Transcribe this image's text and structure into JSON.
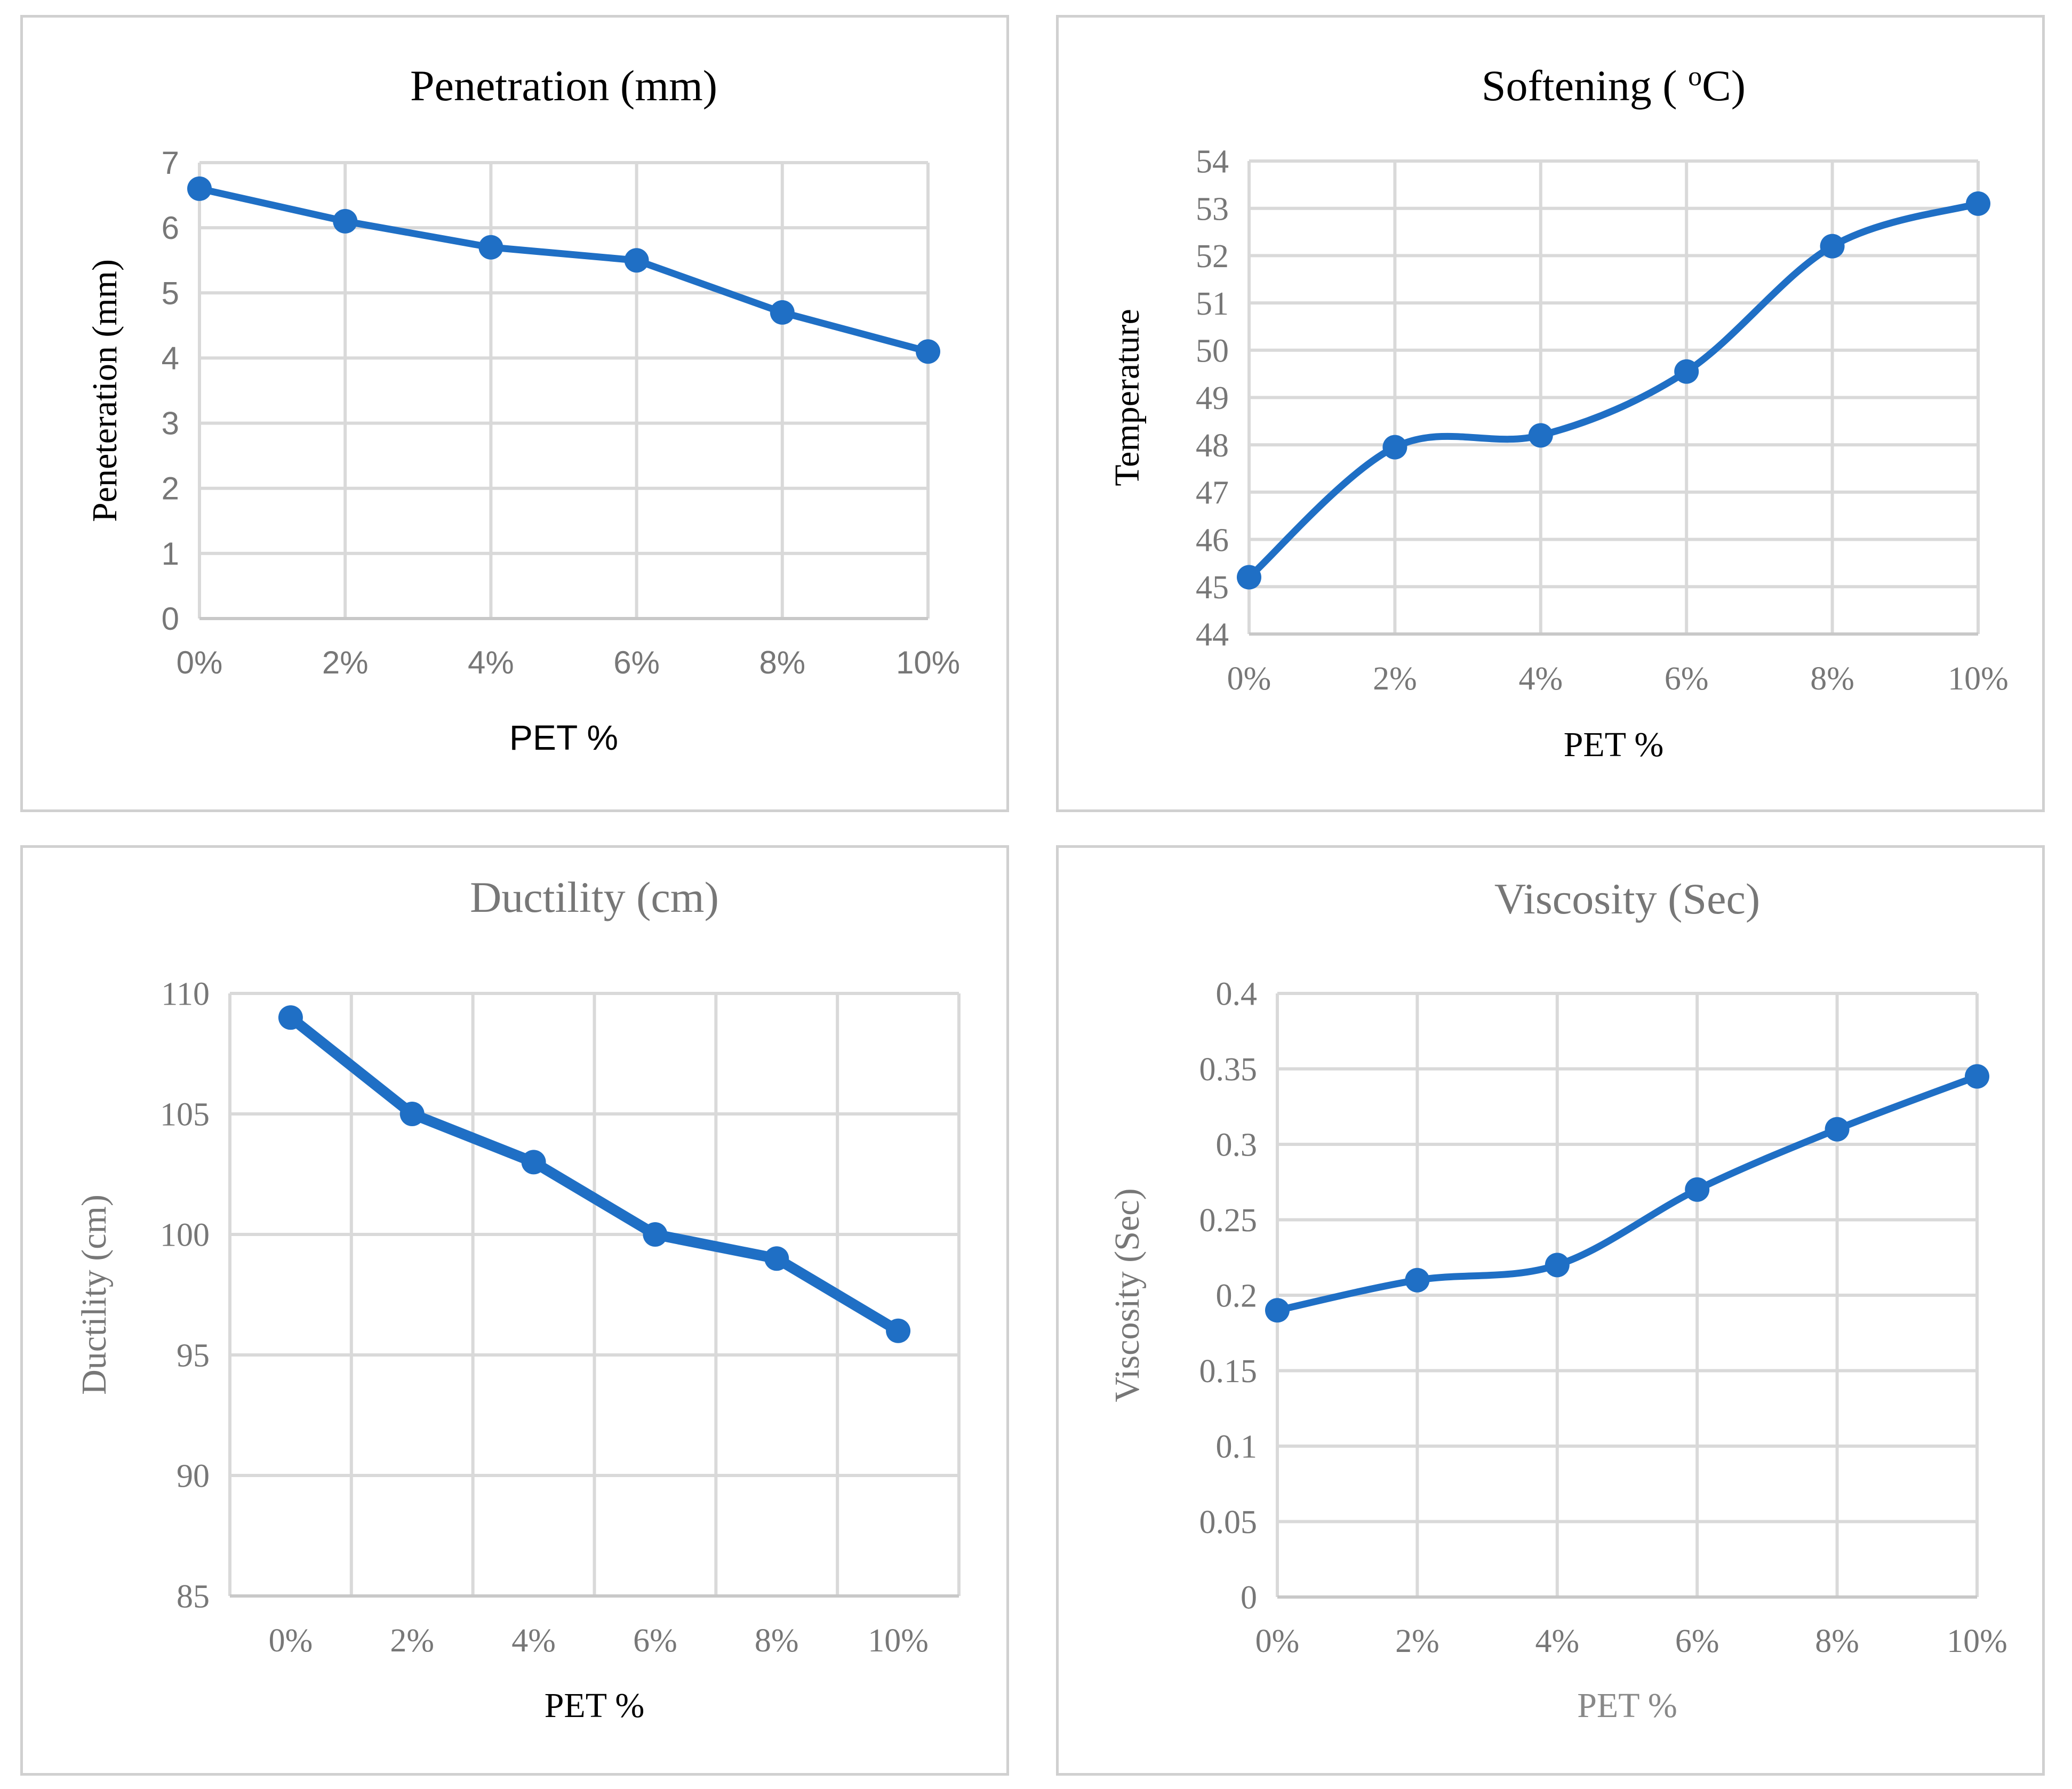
{
  "chart_data": [
    {
      "type": "line",
      "title": "Penetration (mm)",
      "xlabel": "PET %",
      "ylabel": "Peneteration (mm)",
      "categories": [
        "0%",
        "2%",
        "4%",
        "6%",
        "8%",
        "10%"
      ],
      "series": [
        {
          "name": "Penetration",
          "values": [
            6.6,
            6.1,
            5.7,
            5.5,
            4.7,
            4.1
          ]
        }
      ],
      "ylim": [
        0,
        7
      ],
      "yticks": [
        "0",
        "1",
        "2",
        "3",
        "4",
        "5",
        "6",
        "7"
      ],
      "grid": true,
      "smooth": false
    },
    {
      "type": "line",
      "title": "Softening ( ",
      "title_sup": "o",
      "title_end": "C)",
      "xlabel": "PET %",
      "ylabel": "Temperature",
      "categories": [
        "0%",
        "2%",
        "4%",
        "6%",
        "8%",
        "10%"
      ],
      "series": [
        {
          "name": "Softening",
          "values": [
            45.2,
            47.95,
            48.2,
            49.55,
            52.2,
            53.1
          ]
        }
      ],
      "ylim": [
        44,
        54
      ],
      "yticks": [
        "44",
        "45",
        "46",
        "47",
        "48",
        "49",
        "50",
        "51",
        "52",
        "53",
        "54"
      ],
      "grid": true,
      "smooth": true
    },
    {
      "type": "line",
      "title": "Ductility (cm)",
      "xlabel": "PET %",
      "ylabel": "Ductility (cm)",
      "categories": [
        "0%",
        "2%",
        "4%",
        "6%",
        "8%",
        "10%"
      ],
      "series": [
        {
          "name": "Ductility",
          "values": [
            109,
            105,
            103,
            100,
            99,
            96
          ]
        }
      ],
      "ylim": [
        85,
        110
      ],
      "yticks": [
        "85",
        "90",
        "95",
        "100",
        "105",
        "110"
      ],
      "grid": true,
      "smooth": false
    },
    {
      "type": "line",
      "title": "Viscosity (Sec)",
      "xlabel": "PET %",
      "ylabel": "Viscosity (Sec)",
      "categories": [
        "0%",
        "2%",
        "4%",
        "6%",
        "8%",
        "10%"
      ],
      "series": [
        {
          "name": "Viscosity",
          "values": [
            0.19,
            0.21,
            0.22,
            0.27,
            0.31,
            0.345
          ]
        }
      ],
      "ylim": [
        0,
        0.4
      ],
      "yticks": [
        "0",
        "0.05",
        "0.1",
        "0.15",
        "0.2",
        "0.25",
        "0.3",
        "0.35",
        "0.4"
      ],
      "grid": true,
      "smooth": true
    }
  ],
  "colors": {
    "series": "#1f6fc5",
    "grid": "#d9d9d9",
    "panel_border": "#d0d0d0"
  }
}
